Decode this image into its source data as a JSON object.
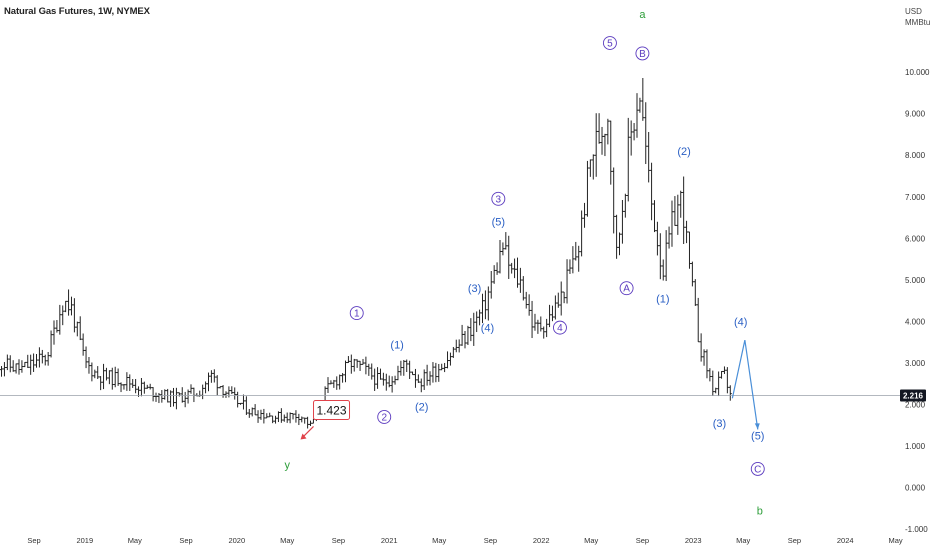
{
  "chart_data": {
    "type": "ohlc",
    "title": "Natural Gas Futures, 1W, NYMEX",
    "currency": "USD",
    "unit": "MMBtu",
    "ylim": [
      -1.0,
      11.0
    ],
    "y_ticks": [
      {
        "value": 10,
        "label": "10.000"
      },
      {
        "value": 9,
        "label": "9.000"
      },
      {
        "value": 8,
        "label": "8.000"
      },
      {
        "value": 7,
        "label": "7.000"
      },
      {
        "value": 6,
        "label": "6.000"
      },
      {
        "value": 5,
        "label": "5.000"
      },
      {
        "value": 4,
        "label": "4.000"
      },
      {
        "value": 3,
        "label": "3.000"
      },
      {
        "value": 2,
        "label": "2.000"
      },
      {
        "value": 1,
        "label": "1.000"
      },
      {
        "value": 0,
        "label": "0.000"
      },
      {
        "value": -1,
        "label": "-1.000"
      }
    ],
    "x_ticks": [
      {
        "date": "2018-09-01",
        "label": "Sep"
      },
      {
        "date": "2019-01-01",
        "label": "2019"
      },
      {
        "date": "2019-05-01",
        "label": "May"
      },
      {
        "date": "2019-09-01",
        "label": "Sep"
      },
      {
        "date": "2020-01-01",
        "label": "2020"
      },
      {
        "date": "2020-05-01",
        "label": "May"
      },
      {
        "date": "2020-09-01",
        "label": "Sep"
      },
      {
        "date": "2021-01-01",
        "label": "2021"
      },
      {
        "date": "2021-05-01",
        "label": "May"
      },
      {
        "date": "2021-09-01",
        "label": "Sep"
      },
      {
        "date": "2022-01-01",
        "label": "2022"
      },
      {
        "date": "2022-05-01",
        "label": "May"
      },
      {
        "date": "2022-09-01",
        "label": "Sep"
      },
      {
        "date": "2023-01-01",
        "label": "2023"
      },
      {
        "date": "2023-05-01",
        "label": "May"
      },
      {
        "date": "2023-09-01",
        "label": "Sep"
      },
      {
        "date": "2024-01-01",
        "label": "2024"
      },
      {
        "date": "2024-05-01",
        "label": "May"
      }
    ],
    "price_path": [
      [
        "2018-06-01",
        3.0
      ],
      [
        "2018-08-01",
        2.85
      ],
      [
        "2018-10-01",
        3.15
      ],
      [
        "2018-11-10",
        4.5
      ],
      [
        "2018-12-01",
        4.3
      ],
      [
        "2019-01-01",
        3.0
      ],
      [
        "2019-02-01",
        2.7
      ],
      [
        "2019-04-01",
        2.6
      ],
      [
        "2019-06-01",
        2.35
      ],
      [
        "2019-08-01",
        2.15
      ],
      [
        "2019-10-01",
        2.3
      ],
      [
        "2019-11-01",
        2.7
      ],
      [
        "2019-12-15",
        2.2
      ],
      [
        "2020-02-01",
        1.85
      ],
      [
        "2020-04-01",
        1.7
      ],
      [
        "2020-06-01",
        1.75
      ],
      [
        "2020-06-26",
        1.48
      ],
      [
        "2020-08-01",
        2.3
      ],
      [
        "2020-10-01",
        3.0
      ],
      [
        "2020-11-01",
        2.85
      ],
      [
        "2020-12-15",
        2.5
      ],
      [
        "2021-01-15",
        2.7
      ],
      [
        "2021-02-10",
        3.0
      ],
      [
        "2021-03-15",
        2.55
      ],
      [
        "2021-05-01",
        2.9
      ],
      [
        "2021-07-01",
        3.6
      ],
      [
        "2021-08-15",
        4.3
      ],
      [
        "2021-10-01",
        5.8
      ],
      [
        "2021-10-20",
        5.2
      ],
      [
        "2021-11-15",
        4.9
      ],
      [
        "2021-12-15",
        3.8
      ],
      [
        "2022-01-15",
        4.0
      ],
      [
        "2022-02-15",
        4.5
      ],
      [
        "2022-04-01",
        5.8
      ],
      [
        "2022-05-01",
        8.0
      ],
      [
        "2022-06-10",
        9.0
      ],
      [
        "2022-07-01",
        5.6
      ],
      [
        "2022-08-01",
        8.3
      ],
      [
        "2022-08-25",
        9.6
      ],
      [
        "2022-09-20",
        7.0
      ],
      [
        "2022-10-20",
        5.2
      ],
      [
        "2022-11-15",
        6.5
      ],
      [
        "2022-12-05",
        7.0
      ],
      [
        "2022-12-20",
        5.5
      ],
      [
        "2023-01-15",
        3.5
      ],
      [
        "2023-02-20",
        2.3
      ],
      [
        "2023-03-15",
        2.75
      ],
      [
        "2023-04-05",
        2.15
      ]
    ],
    "current_price": {
      "value": 2.216,
      "label": "2.216"
    },
    "annotations": [
      {
        "label": "a",
        "date": "2022-09-01",
        "value": 11.4,
        "style": "plain",
        "color": "#2e9e3a"
      },
      {
        "label": "5",
        "date": "2022-06-15",
        "value": 10.7,
        "style": "circle",
        "color": "#5b3bbf"
      },
      {
        "label": "B",
        "date": "2022-09-01",
        "value": 10.45,
        "style": "circle",
        "color": "#5b3bbf"
      },
      {
        "label": "(2)",
        "date": "2022-12-10",
        "value": 8.1,
        "style": "plain",
        "color": "#2a5fc4"
      },
      {
        "label": "3",
        "date": "2021-09-20",
        "value": 6.95,
        "style": "circle",
        "color": "#5b3bbf"
      },
      {
        "label": "(5)",
        "date": "2021-09-20",
        "value": 6.4,
        "style": "plain",
        "color": "#2a5fc4"
      },
      {
        "label": "(3)",
        "date": "2021-07-25",
        "value": 4.8,
        "style": "plain",
        "color": "#2a5fc4"
      },
      {
        "label": "(4)",
        "date": "2021-08-25",
        "value": 3.85,
        "style": "plain",
        "color": "#2a5fc4"
      },
      {
        "label": "A",
        "date": "2022-07-25",
        "value": 4.8,
        "style": "circle",
        "color": "#5b3bbf"
      },
      {
        "label": "(1)",
        "date": "2022-10-20",
        "value": 4.55,
        "style": "plain",
        "color": "#2a5fc4"
      },
      {
        "label": "4",
        "date": "2022-02-15",
        "value": 3.85,
        "style": "circle",
        "color": "#5b3bbf"
      },
      {
        "label": "1",
        "date": "2020-10-15",
        "value": 4.2,
        "style": "circle",
        "color": "#5b3bbf"
      },
      {
        "label": "(1)",
        "date": "2021-01-20",
        "value": 3.45,
        "style": "plain",
        "color": "#2a5fc4"
      },
      {
        "label": "2",
        "date": "2020-12-20",
        "value": 1.7,
        "style": "circle",
        "color": "#5b3bbf"
      },
      {
        "label": "(2)",
        "date": "2021-03-20",
        "value": 1.95,
        "style": "plain",
        "color": "#2a5fc4"
      },
      {
        "label": "(4)",
        "date": "2023-04-25",
        "value": 4.0,
        "style": "plain",
        "color": "#2a5fc4"
      },
      {
        "label": "(3)",
        "date": "2023-03-05",
        "value": 1.55,
        "style": "plain",
        "color": "#2a5fc4"
      },
      {
        "label": "(5)",
        "date": "2023-06-05",
        "value": 1.25,
        "style": "plain",
        "color": "#2a5fc4"
      },
      {
        "label": "C",
        "date": "2023-06-05",
        "value": 0.45,
        "style": "circle",
        "color": "#5b3bbf"
      },
      {
        "label": "b",
        "date": "2023-06-10",
        "value": -0.55,
        "style": "plain",
        "color": "#2e9e3a"
      },
      {
        "label": "y",
        "date": "2020-05-01",
        "value": 0.55,
        "style": "plain",
        "color": "#2e9e3a"
      }
    ],
    "low_marker": {
      "label": "1.423",
      "date": "2020-06-26",
      "value": 1.423
    },
    "projection": [
      [
        "2023-04-05",
        2.15
      ],
      [
        "2023-05-05",
        3.55
      ],
      [
        "2023-06-05",
        1.4
      ]
    ]
  }
}
